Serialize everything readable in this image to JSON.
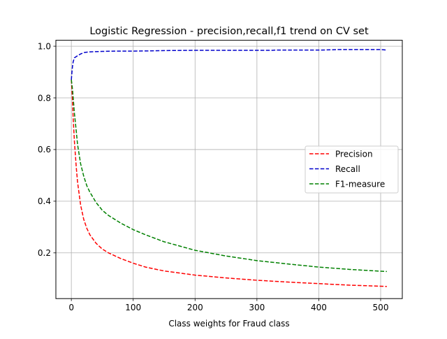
{
  "chart_data": {
    "type": "line",
    "title": "Logistic Regression - precision,recall,f1 trend on CV set",
    "xlabel": "Class weights for Fraud class",
    "ylabel": "",
    "xlim": [
      -25,
      535
    ],
    "ylim": [
      0.023,
      1.023
    ],
    "xticks": [
      0,
      100,
      200,
      300,
      400,
      500
    ],
    "yticks": [
      0.2,
      0.4,
      0.6,
      0.8,
      1.0
    ],
    "xtick_labels": [
      "0",
      "100",
      "200",
      "300",
      "400",
      "500"
    ],
    "ytick_labels": [
      "0.2",
      "0.4",
      "0.6",
      "0.8",
      "1.0"
    ],
    "grid": true,
    "legend_position": "center-right",
    "series": [
      {
        "name": "Precision",
        "color": "#ff0000",
        "x": [
          0,
          1,
          2,
          3,
          5,
          8,
          10,
          15,
          20,
          25,
          30,
          40,
          50,
          60,
          80,
          100,
          120,
          150,
          200,
          250,
          300,
          350,
          400,
          450,
          500,
          510
        ],
        "y": [
          0.87,
          0.83,
          0.78,
          0.72,
          0.63,
          0.53,
          0.475,
          0.385,
          0.33,
          0.295,
          0.27,
          0.237,
          0.215,
          0.2,
          0.178,
          0.16,
          0.145,
          0.13,
          0.114,
          0.103,
          0.094,
          0.087,
          0.081,
          0.075,
          0.071,
          0.07
        ]
      },
      {
        "name": "Recall",
        "color": "#0000cc",
        "x": [
          0,
          1,
          2,
          3,
          5,
          8,
          10,
          15,
          20,
          25,
          30,
          40,
          50,
          75,
          100,
          130,
          150,
          200,
          250,
          300,
          325,
          330,
          350,
          400,
          420,
          430,
          450,
          500,
          510
        ],
        "y": [
          0.87,
          0.9,
          0.925,
          0.94,
          0.955,
          0.96,
          0.963,
          0.97,
          0.975,
          0.977,
          0.978,
          0.979,
          0.98,
          0.981,
          0.981,
          0.982,
          0.983,
          0.984,
          0.984,
          0.984,
          0.984,
          0.985,
          0.985,
          0.985,
          0.986,
          0.987,
          0.987,
          0.987,
          0.985
        ]
      },
      {
        "name": "F1-measure",
        "color": "#008000",
        "x": [
          0,
          1,
          2,
          3,
          5,
          8,
          10,
          15,
          20,
          25,
          30,
          40,
          50,
          60,
          80,
          100,
          120,
          150,
          200,
          250,
          300,
          350,
          400,
          450,
          500,
          510
        ],
        "y": [
          0.87,
          0.85,
          0.83,
          0.8,
          0.74,
          0.67,
          0.62,
          0.545,
          0.497,
          0.46,
          0.435,
          0.395,
          0.365,
          0.345,
          0.315,
          0.29,
          0.27,
          0.243,
          0.21,
          0.188,
          0.17,
          0.157,
          0.145,
          0.136,
          0.129,
          0.128
        ]
      }
    ]
  }
}
